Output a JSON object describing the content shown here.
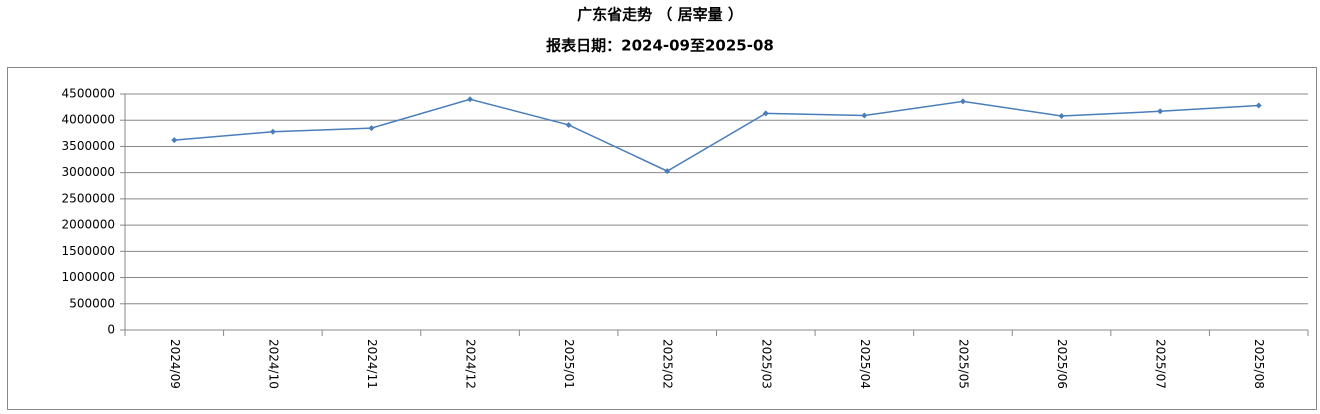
{
  "chart_data": {
    "type": "line",
    "title": "广东省走势 （ 居宰量 ）",
    "subtitle": "报表日期：2024-09至2025-08",
    "categories": [
      "2024/09",
      "2024/10",
      "2024/11",
      "2024/12",
      "2025/01",
      "2025/02",
      "2025/03",
      "2025/04",
      "2025/05",
      "2025/06",
      "2025/07",
      "2025/08"
    ],
    "series": [
      {
        "color": "#4a7ebb",
        "values": [
          3620000,
          3780000,
          3850000,
          4400000,
          3910000,
          3030000,
          4130000,
          4090000,
          4360000,
          4080000,
          4170000,
          4280000
        ]
      }
    ],
    "ylim": [
      0,
      4500000
    ],
    "yticks": [
      0,
      500000,
      1000000,
      1500000,
      2000000,
      2500000,
      3000000,
      3500000,
      4000000,
      4500000
    ],
    "grid": true
  }
}
